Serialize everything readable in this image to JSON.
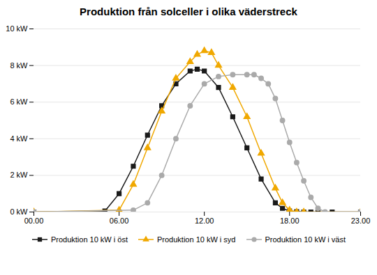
{
  "chart_data": {
    "type": "line",
    "title": "Produktion från solceller i olika väderstreck",
    "xlim": [
      0,
      23
    ],
    "xticks": [
      {
        "value": 0,
        "label": "00.00"
      },
      {
        "value": 6,
        "label": "06.00"
      },
      {
        "value": 12,
        "label": "12.00"
      },
      {
        "value": 18,
        "label": "18.00"
      },
      {
        "value": 23,
        "label": "23.00"
      }
    ],
    "ylim": [
      0,
      10
    ],
    "yticks": [
      {
        "value": 0,
        "label": "0 kW"
      },
      {
        "value": 2,
        "label": "2 kW"
      },
      {
        "value": 4,
        "label": "4 kW"
      },
      {
        "value": 6,
        "label": "6 kW"
      },
      {
        "value": 8,
        "label": "8 kW"
      },
      {
        "value": 10,
        "label": "10 kW"
      }
    ],
    "grid": "y",
    "legend": "bottom",
    "series": [
      {
        "name": "Produktion 10 kW i öst",
        "color": "#1a1a1a",
        "marker": "square",
        "x": [
          0,
          5.0,
          6.0,
          7.0,
          8.0,
          9.0,
          10.0,
          11.0,
          11.5,
          12.0,
          13.0,
          14.0,
          15.0,
          16.0,
          17.0,
          17.5,
          18.0,
          18.5,
          19.0,
          19.5,
          20.0,
          21.0,
          23.0
        ],
        "values": [
          0,
          0.05,
          1.0,
          2.5,
          4.2,
          5.8,
          7.0,
          7.7,
          7.8,
          7.7,
          6.8,
          5.2,
          3.5,
          1.8,
          0.5,
          0.2,
          0.05,
          0.02,
          0.0,
          0.0,
          0.0,
          0.0,
          0.0
        ]
      },
      {
        "name": "Produktion 10 kW i syd",
        "color": "#f0a800",
        "marker": "triangle",
        "x": [
          0,
          6.0,
          7.0,
          8.0,
          9.0,
          10.0,
          11.0,
          11.5,
          12.0,
          12.5,
          13.0,
          14.0,
          15.0,
          16.0,
          17.0,
          17.5,
          18.0,
          18.5,
          19.0,
          23.0
        ],
        "values": [
          0,
          0.1,
          1.5,
          3.5,
          5.5,
          7.3,
          8.2,
          8.6,
          8.8,
          8.7,
          8.0,
          6.8,
          5.2,
          3.2,
          1.3,
          0.5,
          0.1,
          0.0,
          0.0,
          0.0
        ]
      },
      {
        "name": "Produktion 10 kW i väst",
        "color": "#aaaaaa",
        "marker": "circle",
        "x": [
          0,
          7.0,
          8.0,
          9.0,
          10.0,
          11.0,
          12.0,
          13.0,
          14.0,
          15.0,
          15.5,
          16.0,
          16.5,
          17.0,
          17.5,
          18.0,
          18.5,
          19.0,
          19.5,
          20.0,
          20.5,
          23.0
        ],
        "values": [
          0,
          0.1,
          0.5,
          2.0,
          4.0,
          5.8,
          7.0,
          7.4,
          7.5,
          7.5,
          7.5,
          7.3,
          7.0,
          6.2,
          5.0,
          3.8,
          2.7,
          1.7,
          0.8,
          0.2,
          0.0,
          0.0
        ]
      }
    ]
  }
}
